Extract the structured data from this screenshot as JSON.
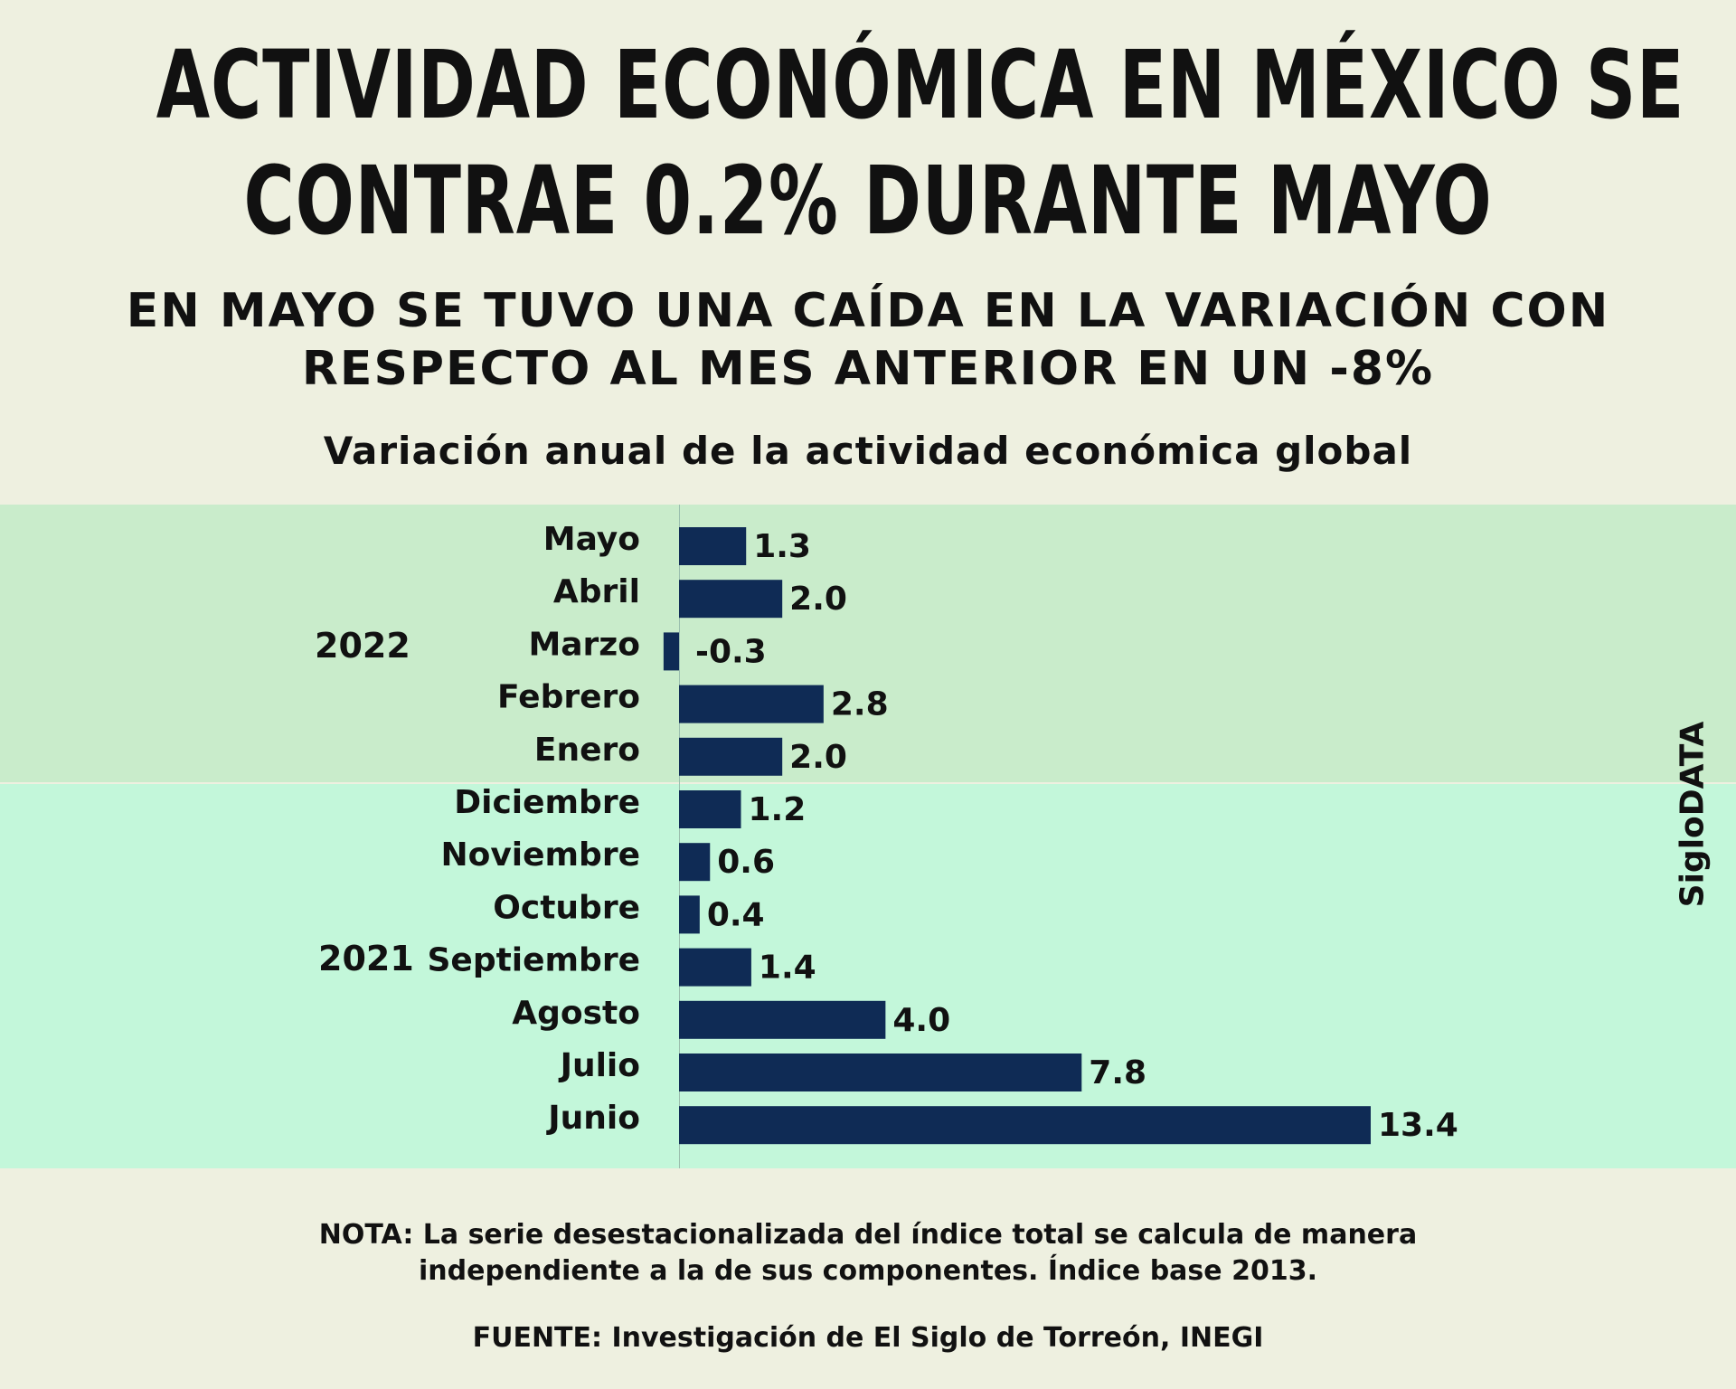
{
  "title": {
    "line1": "ACTIVIDAD ECONÓMICA EN MÉXICO SE",
    "line2": "CONTRAE 0.2% DURANTE MAYO"
  },
  "subtitle": {
    "line1": "EN MAYO SE TUVO UNA CAÍDA EN LA VARIACIÓN CON",
    "line2": "RESPECTO AL MES ANTERIOR EN UN -8%"
  },
  "groups": {
    "y2022": "2022",
    "y2021": "2021"
  },
  "brand": "SigloDATA",
  "note": {
    "line1": "NOTA: La serie desestacionalizada del índice total se calcula de manera",
    "line2": "independiente a la de sus componentes. Índice base 2013."
  },
  "source": "FUENTE: Investigación de El Siglo de Torreón, INEGI",
  "colors": {
    "bar": "#0f2b55",
    "band_2022": "#c9eccb",
    "band_2021": "#c3f7da",
    "background": "#eef0e0"
  },
  "chart_data": {
    "type": "bar",
    "orientation": "horizontal",
    "title": "Variación anual de la actividad económica global",
    "categories": [
      "Mayo",
      "Abril",
      "Marzo",
      "Febrero",
      "Enero",
      "Diciembre",
      "Noviembre",
      "Octubre",
      "Septiembre",
      "Agosto",
      "Julio",
      "Junio"
    ],
    "values": [
      1.3,
      2.0,
      -0.3,
      2.8,
      2.0,
      1.2,
      0.6,
      0.4,
      1.4,
      4.0,
      7.8,
      13.4
    ],
    "value_labels": [
      "1.3",
      "2.0",
      "-0.3",
      "2.8",
      "2.0",
      "1.2",
      "0.6",
      "0.4",
      "1.4",
      "4.0",
      "7.8",
      "13.4"
    ],
    "group_labels": [
      "2022",
      "2022",
      "2022",
      "2022",
      "2022",
      "2021",
      "2021",
      "2021",
      "2021",
      "2021",
      "2021",
      "2021"
    ],
    "xlim": [
      -0.3,
      13.4
    ]
  }
}
